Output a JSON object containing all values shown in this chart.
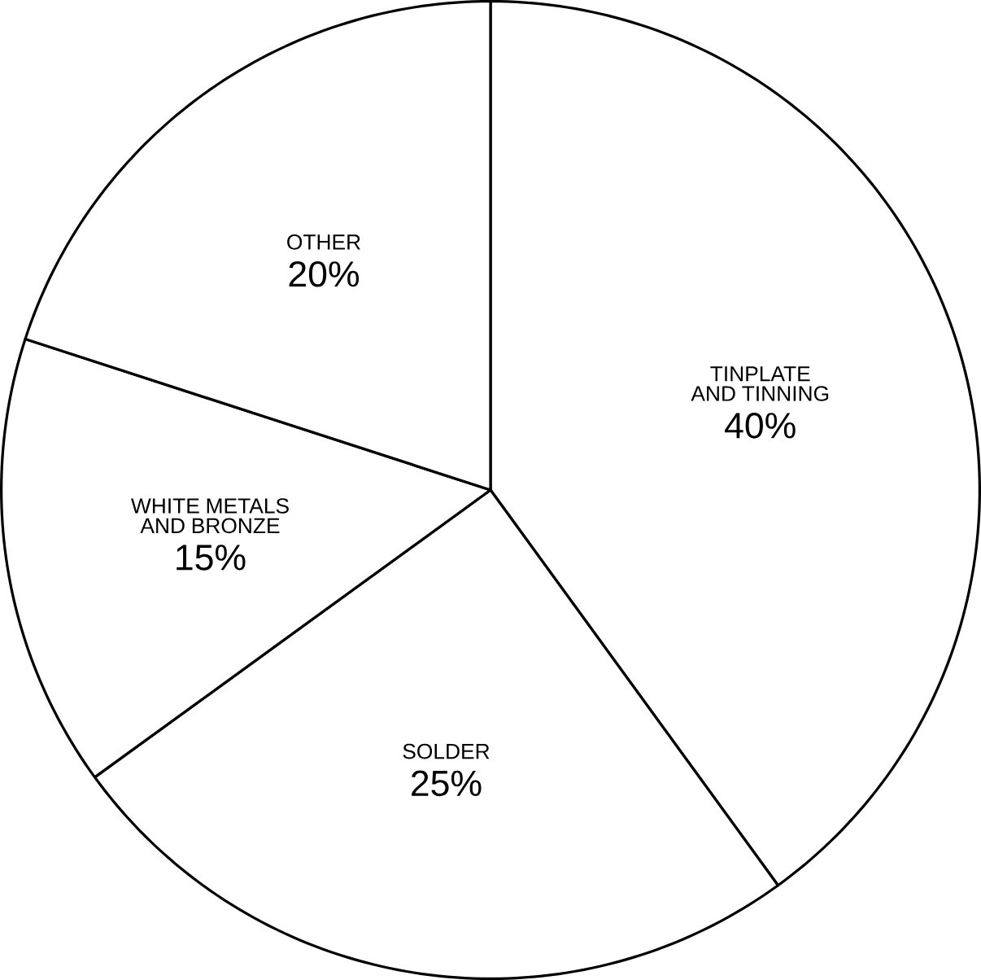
{
  "chart_data": {
    "type": "pie",
    "categories": [
      "TINPLATE AND TINNING",
      "SOLDER",
      "WHITE METALS AND BRONZE",
      "OTHER"
    ],
    "values": [
      40,
      25,
      15,
      20
    ],
    "value_labels": [
      "40%",
      "25%",
      "15%",
      "20%"
    ],
    "colors": [
      "#ffffff",
      "#ffffff",
      "#ffffff",
      "#ffffff"
    ]
  }
}
